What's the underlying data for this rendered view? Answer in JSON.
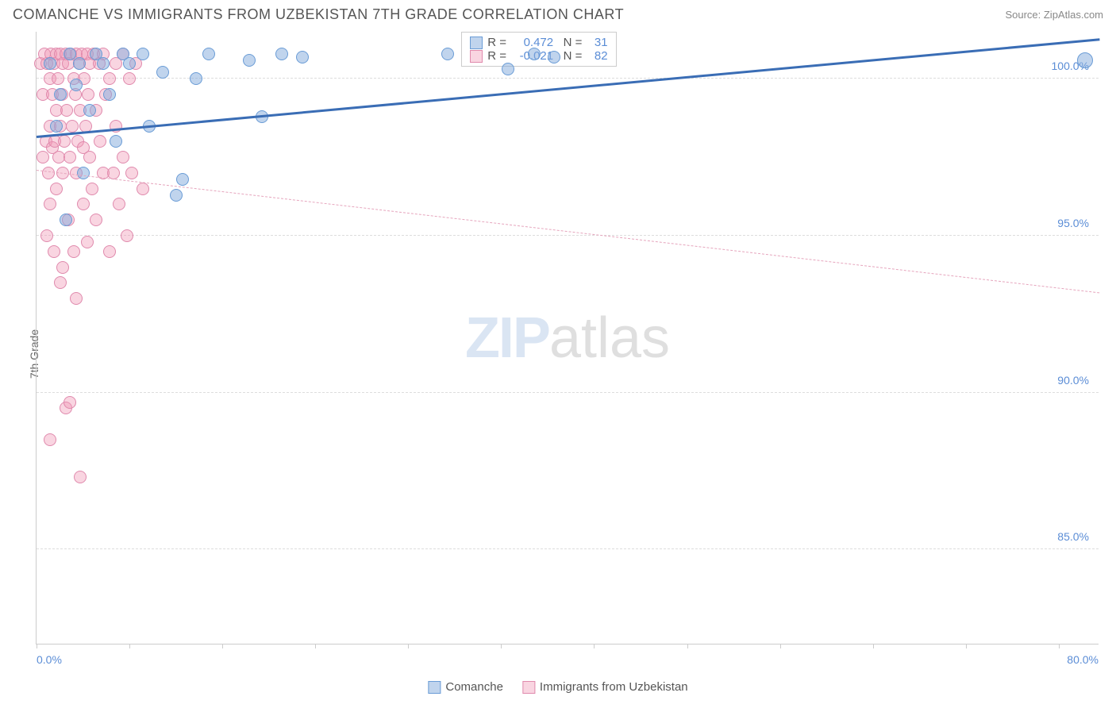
{
  "header": {
    "title": "COMANCHE VS IMMIGRANTS FROM UZBEKISTAN 7TH GRADE CORRELATION CHART",
    "source": "Source: ZipAtlas.com"
  },
  "chart": {
    "type": "scatter",
    "ylabel": "7th Grade",
    "background_color": "#ffffff",
    "grid_color": "#dddddd",
    "axis_color": "#cccccc",
    "label_color": "#5b8dd6",
    "ylim": [
      82,
      101.5
    ],
    "y_ticks": [
      {
        "value": 100,
        "label": "100.0%"
      },
      {
        "value": 95,
        "label": "95.0%"
      },
      {
        "value": 90,
        "label": "90.0%"
      },
      {
        "value": 85,
        "label": "85.0%"
      }
    ],
    "xlim": [
      0,
      80
    ],
    "x_ticks": [
      0,
      7,
      14,
      21,
      28,
      35,
      42,
      49,
      56,
      63,
      70,
      77
    ],
    "x_axis_labels": [
      {
        "value": 0,
        "label": "0.0%"
      },
      {
        "value": 80,
        "label": "80.0%"
      }
    ],
    "watermark": {
      "prefix": "ZIP",
      "suffix": "atlas"
    },
    "series": {
      "blue": {
        "label": "Comanche",
        "color_fill": "rgba(130,170,220,0.5)",
        "color_stroke": "#6a9cd6",
        "trend": {
          "x1": 0,
          "y1": 98.2,
          "x2": 80,
          "y2": 101.3,
          "color": "#3a6db5",
          "dash": false,
          "width": 2.5
        },
        "points": [
          {
            "x": 1.0,
            "y": 100.5
          },
          {
            "x": 1.5,
            "y": 98.5
          },
          {
            "x": 1.8,
            "y": 99.5
          },
          {
            "x": 2.2,
            "y": 95.5
          },
          {
            "x": 2.5,
            "y": 100.8
          },
          {
            "x": 3.0,
            "y": 99.8
          },
          {
            "x": 3.2,
            "y": 100.5
          },
          {
            "x": 3.5,
            "y": 97.0
          },
          {
            "x": 4.0,
            "y": 99.0
          },
          {
            "x": 4.5,
            "y": 100.8
          },
          {
            "x": 5.0,
            "y": 100.5
          },
          {
            "x": 5.5,
            "y": 99.5
          },
          {
            "x": 6.0,
            "y": 98.0
          },
          {
            "x": 6.5,
            "y": 100.8
          },
          {
            "x": 7.0,
            "y": 100.5
          },
          {
            "x": 8.0,
            "y": 100.8
          },
          {
            "x": 8.5,
            "y": 98.5
          },
          {
            "x": 9.5,
            "y": 100.2
          },
          {
            "x": 10.5,
            "y": 96.3
          },
          {
            "x": 11.0,
            "y": 96.8
          },
          {
            "x": 12.0,
            "y": 100.0
          },
          {
            "x": 13.0,
            "y": 100.8
          },
          {
            "x": 16.0,
            "y": 100.6
          },
          {
            "x": 17.0,
            "y": 98.8
          },
          {
            "x": 18.5,
            "y": 100.8
          },
          {
            "x": 20.0,
            "y": 100.7
          },
          {
            "x": 31.0,
            "y": 100.8
          },
          {
            "x": 35.5,
            "y": 100.3
          },
          {
            "x": 37.5,
            "y": 100.8
          },
          {
            "x": 39.0,
            "y": 100.7
          },
          {
            "x": 79.0,
            "y": 100.6
          }
        ]
      },
      "pink": {
        "label": "Immigrants from Uzbekistan",
        "color_fill": "rgba(240,150,180,0.4)",
        "color_stroke": "#e08aad",
        "trend": {
          "x1": 0,
          "y1": 97.1,
          "x2": 80,
          "y2": 93.2,
          "color": "#e6a5bd",
          "dash": true,
          "width": 1.5
        },
        "points": [
          {
            "x": 0.3,
            "y": 100.5
          },
          {
            "x": 0.5,
            "y": 99.5
          },
          {
            "x": 0.5,
            "y": 97.5
          },
          {
            "x": 0.6,
            "y": 100.8
          },
          {
            "x": 0.7,
            "y": 98.0
          },
          {
            "x": 0.8,
            "y": 100.5
          },
          {
            "x": 0.8,
            "y": 95.0
          },
          {
            "x": 0.9,
            "y": 97.0
          },
          {
            "x": 1.0,
            "y": 100.0
          },
          {
            "x": 1.0,
            "y": 98.5
          },
          {
            "x": 1.0,
            "y": 96.0
          },
          {
            "x": 1.1,
            "y": 100.8
          },
          {
            "x": 1.2,
            "y": 99.5
          },
          {
            "x": 1.2,
            "y": 97.8
          },
          {
            "x": 1.3,
            "y": 100.5
          },
          {
            "x": 1.3,
            "y": 94.5
          },
          {
            "x": 1.4,
            "y": 98.0
          },
          {
            "x": 1.5,
            "y": 100.8
          },
          {
            "x": 1.5,
            "y": 99.0
          },
          {
            "x": 1.5,
            "y": 96.5
          },
          {
            "x": 1.6,
            "y": 100.0
          },
          {
            "x": 1.7,
            "y": 97.5
          },
          {
            "x": 1.8,
            "y": 100.8
          },
          {
            "x": 1.8,
            "y": 98.5
          },
          {
            "x": 1.8,
            "y": 93.5
          },
          {
            "x": 1.9,
            "y": 99.5
          },
          {
            "x": 2.0,
            "y": 100.5
          },
          {
            "x": 2.0,
            "y": 97.0
          },
          {
            "x": 2.0,
            "y": 94.0
          },
          {
            "x": 2.1,
            "y": 98.0
          },
          {
            "x": 2.2,
            "y": 100.8
          },
          {
            "x": 2.2,
            "y": 89.5
          },
          {
            "x": 2.3,
            "y": 99.0
          },
          {
            "x": 2.4,
            "y": 100.5
          },
          {
            "x": 2.4,
            "y": 95.5
          },
          {
            "x": 2.5,
            "y": 97.5
          },
          {
            "x": 2.5,
            "y": 89.7
          },
          {
            "x": 2.6,
            "y": 100.8
          },
          {
            "x": 2.7,
            "y": 98.5
          },
          {
            "x": 2.8,
            "y": 100.0
          },
          {
            "x": 2.8,
            "y": 94.5
          },
          {
            "x": 2.9,
            "y": 99.5
          },
          {
            "x": 3.0,
            "y": 100.8
          },
          {
            "x": 3.0,
            "y": 97.0
          },
          {
            "x": 3.0,
            "y": 93.0
          },
          {
            "x": 3.1,
            "y": 98.0
          },
          {
            "x": 3.2,
            "y": 100.5
          },
          {
            "x": 3.3,
            "y": 99.0
          },
          {
            "x": 3.3,
            "y": 87.3
          },
          {
            "x": 3.4,
            "y": 100.8
          },
          {
            "x": 3.5,
            "y": 96.0
          },
          {
            "x": 3.5,
            "y": 97.8
          },
          {
            "x": 3.6,
            "y": 100.0
          },
          {
            "x": 3.7,
            "y": 98.5
          },
          {
            "x": 3.8,
            "y": 100.8
          },
          {
            "x": 3.8,
            "y": 94.8
          },
          {
            "x": 3.9,
            "y": 99.5
          },
          {
            "x": 4.0,
            "y": 100.5
          },
          {
            "x": 4.0,
            "y": 97.5
          },
          {
            "x": 4.2,
            "y": 96.5
          },
          {
            "x": 4.3,
            "y": 100.8
          },
          {
            "x": 4.5,
            "y": 99.0
          },
          {
            "x": 4.5,
            "y": 95.5
          },
          {
            "x": 4.7,
            "y": 100.5
          },
          {
            "x": 4.8,
            "y": 98.0
          },
          {
            "x": 5.0,
            "y": 100.8
          },
          {
            "x": 5.0,
            "y": 97.0
          },
          {
            "x": 5.2,
            "y": 99.5
          },
          {
            "x": 5.5,
            "y": 100.0
          },
          {
            "x": 5.5,
            "y": 94.5
          },
          {
            "x": 5.8,
            "y": 97.0
          },
          {
            "x": 6.0,
            "y": 100.5
          },
          {
            "x": 6.0,
            "y": 98.5
          },
          {
            "x": 6.2,
            "y": 96.0
          },
          {
            "x": 6.5,
            "y": 100.8
          },
          {
            "x": 6.5,
            "y": 97.5
          },
          {
            "x": 6.8,
            "y": 95.0
          },
          {
            "x": 7.0,
            "y": 100.0
          },
          {
            "x": 7.2,
            "y": 97.0
          },
          {
            "x": 7.5,
            "y": 100.5
          },
          {
            "x": 8.0,
            "y": 96.5
          },
          {
            "x": 1.0,
            "y": 88.5
          }
        ]
      }
    },
    "statbox": {
      "rows": [
        {
          "swatch": "blue",
          "r_label": "R =",
          "r_value": "0.472",
          "n_label": "N =",
          "n_value": "31"
        },
        {
          "swatch": "pink",
          "r_label": "R =",
          "r_value": "-0.021",
          "n_label": "N =",
          "n_value": "82"
        }
      ]
    },
    "legend": [
      {
        "swatch": "blue",
        "label": "Comanche"
      },
      {
        "swatch": "pink",
        "label": "Immigrants from Uzbekistan"
      }
    ]
  }
}
